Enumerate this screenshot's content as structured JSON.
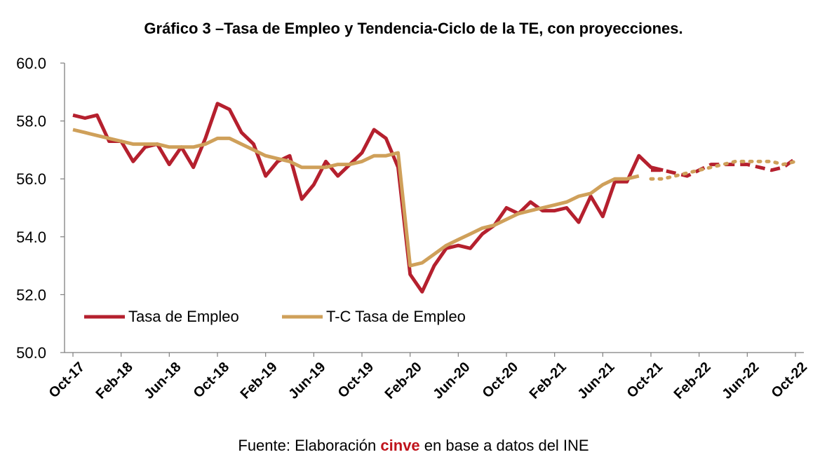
{
  "chart_data": {
    "type": "line",
    "title": "Gráfico 3 –Tasa de Empleo y Tendencia-Ciclo de la TE, con proyecciones.",
    "source": {
      "prefix": "Fuente: Elaboración ",
      "brand": "cinve",
      "suffix": " en base a datos del INE"
    },
    "ylim": [
      50,
      60
    ],
    "yticks": [
      "50.0",
      "52.0",
      "54.0",
      "56.0",
      "58.0",
      "60.0"
    ],
    "xticks": [
      "Oct-17",
      "Feb-18",
      "Jun-18",
      "Oct-18",
      "Feb-19",
      "Jun-19",
      "Oct-19",
      "Feb-20",
      "Jun-20",
      "Oct-20",
      "Feb-21",
      "Jun-21",
      "Oct-21",
      "Feb-22",
      "Jun-22",
      "Oct-22"
    ],
    "legend_position": "bottom-left",
    "colors": {
      "series_1": "#b5202e",
      "series_2": "#cfa05a",
      "axis": "#7f7f7f",
      "brand": "#c0141c"
    },
    "series": [
      {
        "name": "Tasa de Empleo",
        "style": "solid",
        "x": [
          "Oct-17",
          "Nov-17",
          "Dec-17",
          "Jan-18",
          "Feb-18",
          "Mar-18",
          "Apr-18",
          "May-18",
          "Jun-18",
          "Jul-18",
          "Aug-18",
          "Sep-18",
          "Oct-18",
          "Nov-18",
          "Dec-18",
          "Jan-19",
          "Feb-19",
          "Mar-19",
          "Apr-19",
          "May-19",
          "Jun-19",
          "Jul-19",
          "Aug-19",
          "Sep-19",
          "Oct-19",
          "Nov-19",
          "Dec-19",
          "Jan-20",
          "Feb-20",
          "Mar-20",
          "Apr-20",
          "May-20",
          "Jun-20",
          "Jul-20",
          "Aug-20",
          "Sep-20",
          "Oct-20",
          "Nov-20",
          "Dec-20",
          "Jan-21",
          "Feb-21",
          "Mar-21",
          "Apr-21",
          "May-21",
          "Jun-21",
          "Jul-21",
          "Aug-21",
          "Sep-21",
          "Oct-21",
          "Nov-21"
        ],
        "values": [
          58.2,
          58.1,
          58.2,
          57.3,
          57.3,
          56.6,
          57.1,
          57.2,
          56.5,
          57.1,
          56.4,
          57.4,
          58.6,
          58.4,
          57.6,
          57.2,
          56.1,
          56.6,
          56.8,
          55.3,
          55.8,
          56.6,
          56.1,
          56.5,
          56.9,
          57.7,
          57.4,
          56.4,
          52.7,
          52.1,
          53.0,
          53.6,
          53.7,
          53.6,
          54.1,
          54.4,
          55.0,
          54.8,
          55.2,
          54.9,
          54.9,
          55.0,
          54.5,
          55.4,
          54.7,
          55.9,
          55.9,
          56.8,
          56.4,
          56.3
        ]
      },
      {
        "name": "T-C Tasa de Empleo",
        "style": "solid",
        "x": [
          "Oct-17",
          "Nov-17",
          "Dec-17",
          "Jan-18",
          "Feb-18",
          "Mar-18",
          "Apr-18",
          "May-18",
          "Jun-18",
          "Jul-18",
          "Aug-18",
          "Sep-18",
          "Oct-18",
          "Nov-18",
          "Dec-18",
          "Jan-19",
          "Feb-19",
          "Mar-19",
          "Apr-19",
          "May-19",
          "Jun-19",
          "Jul-19",
          "Aug-19",
          "Sep-19",
          "Oct-19",
          "Nov-19",
          "Dec-19",
          "Jan-20",
          "Feb-20",
          "Mar-20",
          "Apr-20",
          "May-20",
          "Jun-20",
          "Jul-20",
          "Aug-20",
          "Sep-20",
          "Oct-20",
          "Nov-20",
          "Dec-20",
          "Jan-21",
          "Feb-21",
          "Mar-21",
          "Apr-21",
          "May-21",
          "Jun-21",
          "Jul-21",
          "Aug-21",
          "Sep-21"
        ],
        "values": [
          57.7,
          57.6,
          57.5,
          57.4,
          57.3,
          57.2,
          57.2,
          57.2,
          57.1,
          57.1,
          57.1,
          57.2,
          57.4,
          57.4,
          57.2,
          57.0,
          56.8,
          56.7,
          56.6,
          56.4,
          56.4,
          56.4,
          56.5,
          56.5,
          56.6,
          56.8,
          56.8,
          56.9,
          53.0,
          53.1,
          53.4,
          53.7,
          53.9,
          54.1,
          54.3,
          54.4,
          54.6,
          54.8,
          54.9,
          55.0,
          55.1,
          55.2,
          55.4,
          55.5,
          55.8,
          56.0,
          56.0,
          56.1
        ]
      },
      {
        "name": "",
        "style": "dashed",
        "color_key": "series_1",
        "x": [
          "Oct-21",
          "Nov-21",
          "Dec-21",
          "Jan-22",
          "Feb-22",
          "Mar-22",
          "Apr-22",
          "May-22",
          "Jun-22",
          "Jul-22",
          "Aug-22",
          "Sep-22",
          "Oct-22"
        ],
        "values": [
          56.3,
          56.3,
          56.2,
          56.1,
          56.3,
          56.5,
          56.5,
          56.5,
          56.5,
          56.4,
          56.3,
          56.4,
          56.7
        ]
      },
      {
        "name": "",
        "style": "dotted",
        "color_key": "series_2",
        "x": [
          "Oct-21",
          "Nov-21",
          "Dec-21",
          "Jan-22",
          "Feb-22",
          "Mar-22",
          "Apr-22",
          "May-22",
          "Jun-22",
          "Jul-22",
          "Aug-22",
          "Sep-22",
          "Oct-22"
        ],
        "values": [
          56.0,
          56.0,
          56.1,
          56.2,
          56.3,
          56.4,
          56.5,
          56.6,
          56.6,
          56.6,
          56.6,
          56.5,
          56.6
        ]
      }
    ]
  }
}
